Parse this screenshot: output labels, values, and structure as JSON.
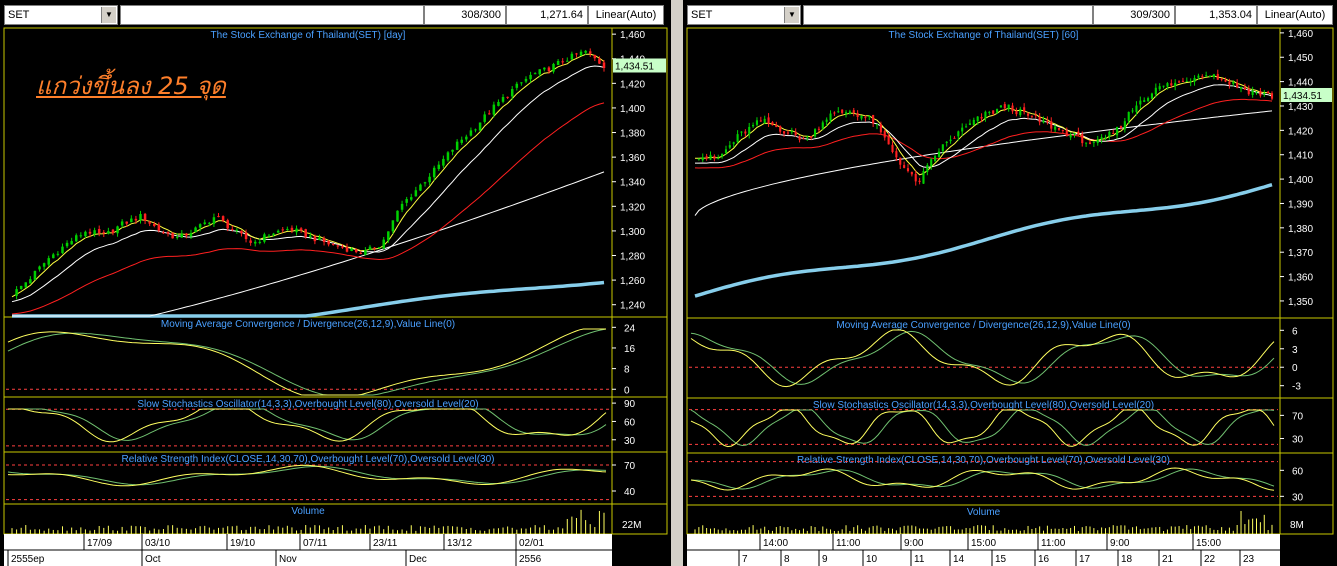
{
  "left": {
    "symbol": "SET",
    "count": "308/300",
    "price": "1,271.64",
    "scale": "Linear(Auto)",
    "annotation": "แกว่งขึ้นลง 25 จุด",
    "titles": {
      "main": "The Stock Exchange of Thailand(SET) [day]",
      "macd": "Moving Average Convergence / Divergence(26,12,9),Value Line(0)",
      "stoch": "Slow Stochastics Oscillator(14,3,3),Overbought Level(80),Oversold Level(20)",
      "rsi": "Relative Strength Index(CLOSE,14,30,70),Overbought Level(70),Oversold Level(30)",
      "vol": "Volume"
    },
    "last_price": "1,434.51",
    "price_ticks": [
      "1,460",
      "1,440",
      "1,420",
      "1,400",
      "1,380",
      "1,360",
      "1,340",
      "1,320",
      "1,300",
      "1,280",
      "1,260",
      "1,240"
    ],
    "macd_ticks": [
      "24",
      "16",
      "8",
      "0"
    ],
    "stoch_ticks": [
      "90",
      "60",
      "30"
    ],
    "rsi_ticks": [
      "70",
      "40"
    ],
    "vol_ticks": [
      "22M"
    ],
    "date_top": [
      "17/09",
      "03/10",
      "19/10",
      "07/11",
      "23/11",
      "13/12",
      "02/01"
    ],
    "date_bottom": [
      "2555ep",
      "Oct",
      "Nov",
      "Dec",
      "2556"
    ],
    "colors": {
      "up": "#00d000",
      "down": "#ff2020",
      "bg": "#000000",
      "grid": "#ffffff",
      "ma_slow": "#87ceeb",
      "text": "#4aa0ff"
    }
  },
  "right": {
    "symbol": "SET",
    "count": "309/300",
    "price": "1,353.04",
    "scale": "Linear(Auto)",
    "titles": {
      "main": "The Stock Exchange of Thailand(SET) [60]",
      "macd": "Moving Average Convergence / Divergence(26,12,9),Value Line(0)",
      "stoch": "Slow Stochastics Oscillator(14,3,3),Overbought Level(80),Oversold Level(20)",
      "rsi": "Relative Strength Index(CLOSE,14,30,70),Overbought Level(70),Oversold Level(30)",
      "vol": "Volume"
    },
    "last_price": "1,434.51",
    "price_ticks": [
      "1,460",
      "1,450",
      "1,440",
      "1,430",
      "1,420",
      "1,410",
      "1,400",
      "1,390",
      "1,380",
      "1,370",
      "1,360",
      "1,350"
    ],
    "macd_ticks": [
      "6",
      "3",
      "0",
      "-3"
    ],
    "stoch_ticks": [
      "70",
      "30"
    ],
    "rsi_ticks": [
      "60",
      "30"
    ],
    "vol_ticks": [
      "8M"
    ],
    "date_top": [
      "14:00",
      "11:00",
      "9:00",
      "15:00",
      "11:00",
      "9:00",
      "15:00"
    ],
    "date_bottom": [
      "7",
      "8",
      "9",
      "10",
      "11",
      "14",
      "15",
      "16",
      "17",
      "18",
      "21",
      "22",
      "23"
    ]
  },
  "chart_data": [
    {
      "type": "line",
      "title": "The Stock Exchange of Thailand(SET) [day]",
      "ylim": [
        1230,
        1465
      ],
      "series": [
        {
          "name": "SET",
          "values": [
            1248,
            1262,
            1278,
            1290,
            1300,
            1296,
            1306,
            1312,
            1300,
            1294,
            1302,
            1312,
            1300,
            1290,
            1298,
            1302,
            1296,
            1290,
            1286,
            1282,
            1290,
            1320,
            1336,
            1352,
            1370,
            1384,
            1400,
            1414,
            1426,
            1432,
            1440,
            1446,
            1434
          ]
        }
      ]
    },
    {
      "type": "line",
      "title": "The Stock Exchange of Thailand(SET) [60]",
      "ylim": [
        1343,
        1462
      ],
      "series": [
        {
          "name": "SET",
          "values": [
            1410,
            1408,
            1418,
            1424,
            1420,
            1416,
            1426,
            1428,
            1424,
            1410,
            1398,
            1412,
            1420,
            1426,
            1430,
            1426,
            1422,
            1418,
            1414,
            1420,
            1432,
            1438,
            1440,
            1444,
            1440,
            1436,
            1434
          ]
        }
      ]
    }
  ]
}
